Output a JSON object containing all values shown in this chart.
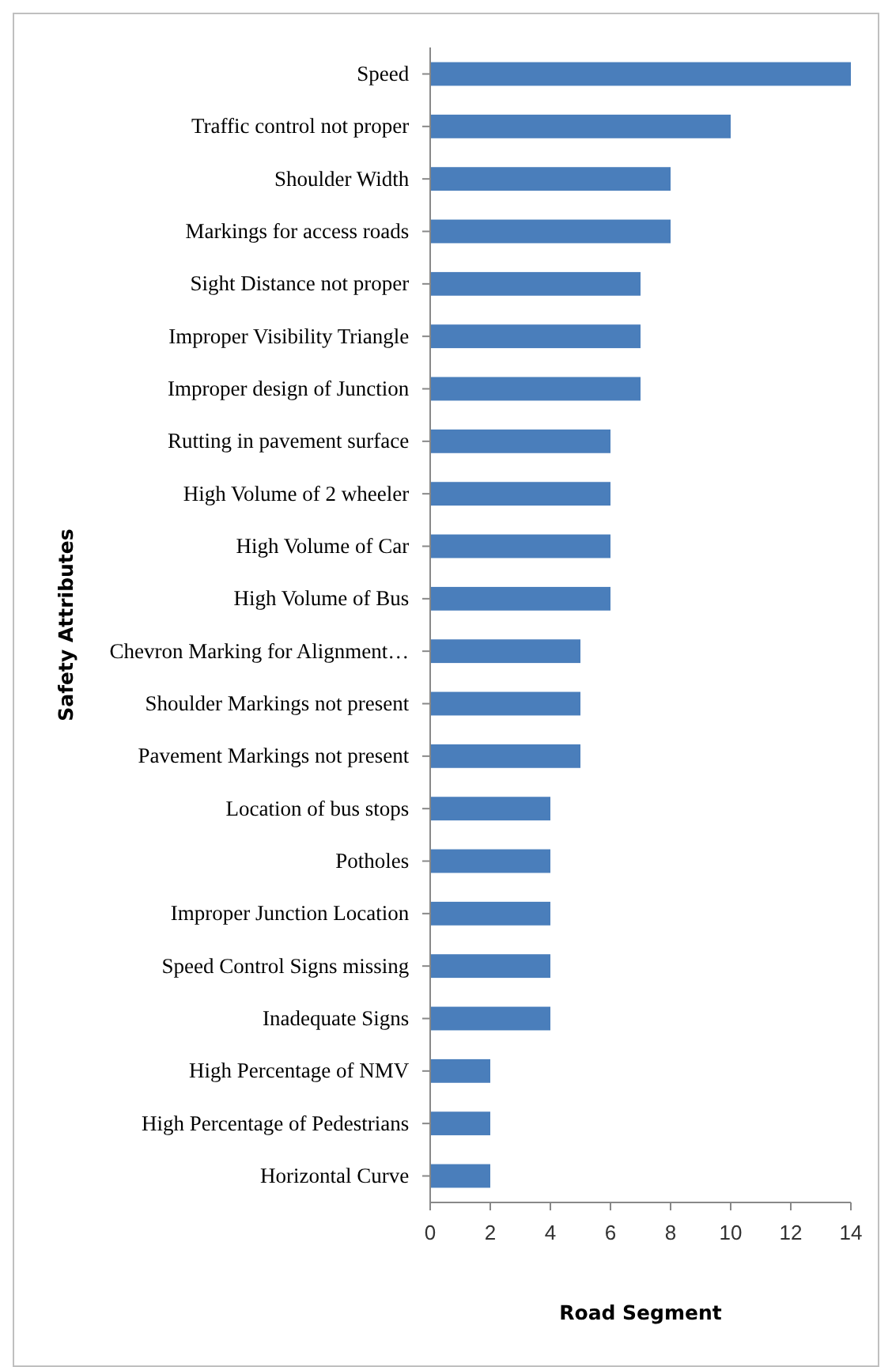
{
  "chart_data": {
    "type": "bar",
    "orientation": "horizontal",
    "xlabel": "Road Segment",
    "ylabel": "Safety Attributes",
    "categories": [
      "Speed",
      "Traffic control not proper",
      "Shoulder Width",
      "Markings for access roads",
      "Sight Distance not proper",
      "Improper Visibility Triangle",
      "Improper design of Junction",
      "Rutting in pavement surface",
      "High Volume of 2 wheeler",
      "High Volume of Car",
      "High Volume of Bus",
      "Chevron Marking for Alignment…",
      "Shoulder Markings not present",
      "Pavement Markings not present",
      "Location of bus stops",
      "Potholes",
      "Improper Junction  Location",
      "Speed Control Signs missing",
      "Inadequate Signs",
      "High Percentage of NMV",
      "High Percentage of Pedestrians",
      "Horizontal Curve"
    ],
    "values": [
      14,
      10,
      8,
      8,
      7,
      7,
      7,
      6,
      6,
      6,
      6,
      5,
      5,
      5,
      4,
      4,
      4,
      4,
      4,
      2,
      2,
      2
    ],
    "color": "#4a7ebb",
    "xlim": [
      0,
      14
    ],
    "xticks": [
      0,
      2,
      4,
      6,
      8,
      10,
      12,
      14
    ],
    "grid": false,
    "legend": false
  }
}
